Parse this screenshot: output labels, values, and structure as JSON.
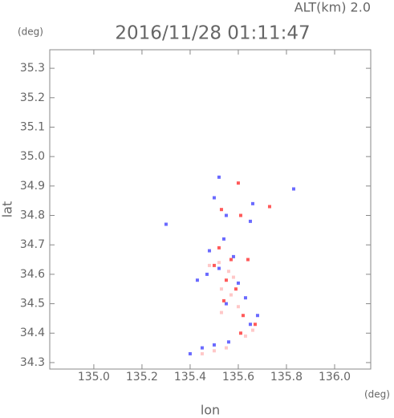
{
  "chart_data": {
    "type": "scatter",
    "altitude_label": "ALT(km) 2.0",
    "title": "2016/11/28 01:11:47",
    "y_unit": "(deg)",
    "x_unit": "(deg)",
    "ylabel": "lat",
    "xlabel": "lon",
    "xlim": [
      134.817,
      136.15
    ],
    "ylim": [
      34.278,
      35.363
    ],
    "xticks": [
      {
        "value": 135.0,
        "label": "135.0"
      },
      135.2,
      135.4,
      135.6,
      135.8,
      {
        "value": 136.0,
        "label": "136.0"
      }
    ],
    "yticks": [
      34.3,
      34.4,
      34.5,
      34.6,
      34.7,
      34.8,
      34.9,
      {
        "value": 35.0,
        "label": "35.0"
      },
      35.1,
      35.2,
      35.3
    ],
    "series": [
      {
        "color": "#6a6aff",
        "x": [
          135.52,
          135.5,
          135.55,
          135.66,
          135.83,
          135.3,
          135.48,
          135.52,
          135.6,
          135.47,
          135.55,
          135.63,
          135.68,
          135.4,
          135.45,
          135.5,
          135.56,
          135.65,
          135.58,
          135.65,
          135.43,
          135.54
        ],
        "values": [
          34.93,
          34.86,
          34.8,
          34.84,
          34.89,
          34.77,
          34.68,
          34.62,
          34.57,
          34.6,
          34.5,
          34.52,
          34.46,
          34.33,
          34.35,
          34.36,
          34.37,
          34.43,
          34.66,
          34.78,
          34.58,
          34.72
        ]
      },
      {
        "color": "#ff5a5a",
        "x": [
          135.6,
          135.53,
          135.61,
          135.73,
          135.52,
          135.57,
          135.64,
          135.5,
          135.55,
          135.59,
          135.54,
          135.62,
          135.67,
          135.61
        ],
        "values": [
          34.91,
          34.82,
          34.8,
          34.83,
          34.69,
          34.65,
          34.65,
          34.63,
          34.58,
          34.55,
          34.51,
          34.46,
          34.43,
          34.4
        ]
      },
      {
        "color": "#ffc8c8",
        "x": [
          135.52,
          135.56,
          135.58,
          135.53,
          135.57,
          135.6,
          135.45,
          135.5,
          135.55,
          135.63,
          135.66,
          135.53,
          135.48
        ],
        "values": [
          34.64,
          34.61,
          34.59,
          34.55,
          34.53,
          34.49,
          34.33,
          34.34,
          34.35,
          34.39,
          34.41,
          34.47,
          34.63
        ]
      }
    ]
  }
}
